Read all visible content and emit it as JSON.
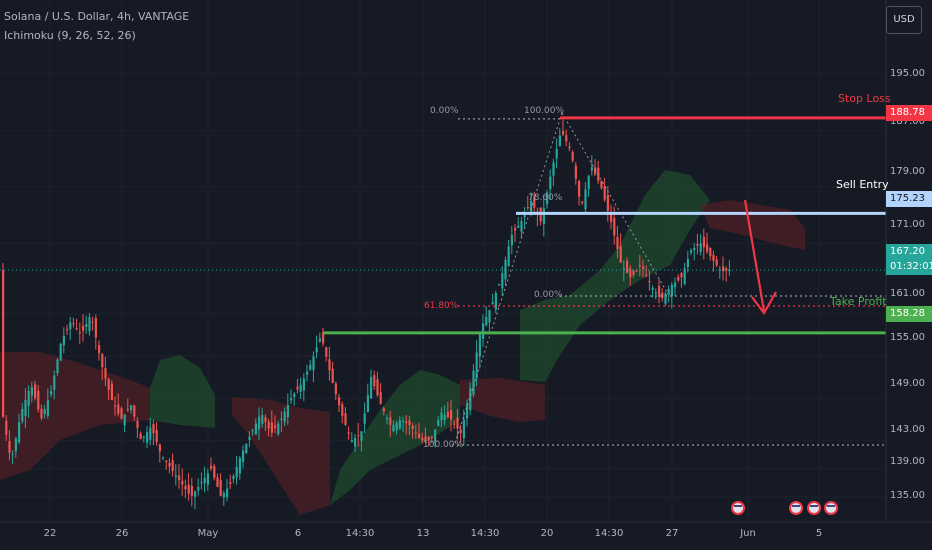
{
  "header": {
    "title": "Solana / U.S. Dollar, 4h, VANTAGE",
    "indicator": "Ichimoku (9, 26, 52, 26)",
    "currency": "USD"
  },
  "colors": {
    "background": "#161a25",
    "up": "#26a69a",
    "down": "#ef5350",
    "cloud_bull": "#1f4a2c",
    "cloud_bear": "#4e1f24",
    "stop_loss": "#f23645",
    "sell_entry": "#b3d4fc",
    "take_profit": "#4caf50"
  },
  "axis": {
    "y_ticks": [
      "195.00",
      "187.00",
      "179.00",
      "171.00",
      "161.00",
      "155.00",
      "149.00",
      "143.00",
      "139.00",
      "135.00"
    ],
    "x_ticks": [
      "22",
      "26",
      "May",
      "6",
      "14:30",
      "13",
      "14:30",
      "20",
      "14:30",
      "27",
      "Jun",
      "5"
    ]
  },
  "price_tags": {
    "stop_loss": "188.78",
    "sell_entry": "175.23",
    "current": "167.20",
    "countdown": "01:32:01",
    "take_profit": "158.28"
  },
  "annotations": {
    "stop_loss": "Stop Loss",
    "sell_entry": "Sell Entry",
    "take_profit": "Take Profit"
  },
  "fib": {
    "a_top": "0.00%",
    "a_bottom": "100.00%",
    "a_618": "61.80%",
    "b_top": "100.00%",
    "b_mid": "78.60%",
    "b_bottom": "0.00%"
  },
  "chart_data": {
    "type": "candlestick",
    "symbol": "Solana / U.S. Dollar",
    "timeframe": "4h",
    "y_range": [
      132,
      198
    ],
    "levels": {
      "stop_loss": 188.78,
      "sell_entry": 175.23,
      "current": 167.2,
      "take_profit": 158.28
    },
    "price_path": [
      [
        0,
        148
      ],
      [
        10,
        140
      ],
      [
        20,
        147
      ],
      [
        30,
        151
      ],
      [
        40,
        146
      ],
      [
        50,
        150
      ],
      [
        60,
        157
      ],
      [
        70,
        160
      ],
      [
        80,
        158
      ],
      [
        90,
        161
      ],
      [
        100,
        154
      ],
      [
        110,
        149
      ],
      [
        120,
        146
      ],
      [
        130,
        148
      ],
      [
        140,
        143
      ],
      [
        150,
        145
      ],
      [
        160,
        141
      ],
      [
        170,
        139
      ],
      [
        180,
        137
      ],
      [
        190,
        135
      ],
      [
        200,
        137
      ],
      [
        210,
        139
      ],
      [
        220,
        135
      ],
      [
        230,
        137
      ],
      [
        240,
        141
      ],
      [
        250,
        144
      ],
      [
        260,
        147
      ],
      [
        270,
        144
      ],
      [
        280,
        146
      ],
      [
        290,
        149
      ],
      [
        300,
        151
      ],
      [
        310,
        154
      ],
      [
        320,
        158
      ],
      [
        330,
        152
      ],
      [
        340,
        147
      ],
      [
        350,
        143
      ],
      [
        360,
        144
      ],
      [
        370,
        152
      ],
      [
        380,
        148
      ],
      [
        390,
        145
      ],
      [
        400,
        146
      ],
      [
        410,
        145
      ],
      [
        420,
        143
      ],
      [
        430,
        143
      ],
      [
        440,
        147
      ],
      [
        450,
        146
      ],
      [
        460,
        144
      ],
      [
        470,
        151
      ],
      [
        480,
        159
      ],
      [
        490,
        162
      ],
      [
        500,
        166
      ],
      [
        510,
        172
      ],
      [
        520,
        174
      ],
      [
        530,
        177
      ],
      [
        540,
        174
      ],
      [
        550,
        181
      ],
      [
        560,
        187
      ],
      [
        570,
        184
      ],
      [
        580,
        176
      ],
      [
        590,
        182
      ],
      [
        600,
        179
      ],
      [
        610,
        174
      ],
      [
        620,
        168
      ],
      [
        630,
        166
      ],
      [
        640,
        168
      ],
      [
        650,
        165
      ],
      [
        660,
        163
      ],
      [
        670,
        165
      ],
      [
        680,
        166
      ],
      [
        690,
        170
      ],
      [
        700,
        171
      ],
      [
        710,
        169
      ],
      [
        720,
        167
      ],
      [
        730,
        167.2
      ]
    ]
  }
}
